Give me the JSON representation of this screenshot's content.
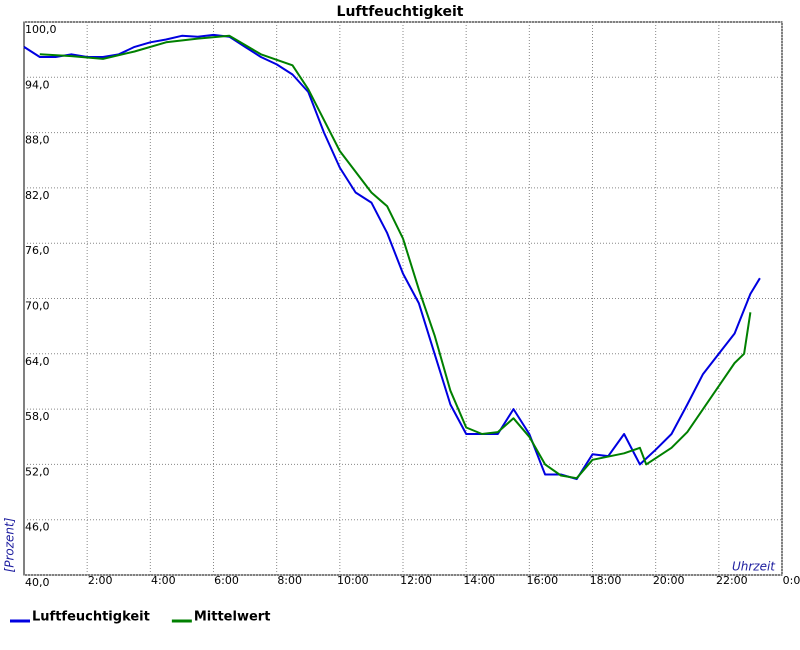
{
  "chart_data": {
    "type": "line",
    "title": "Luftfeuchtigkeit",
    "x_label": "Uhrzeit",
    "y_label": "[Prozent]",
    "xlim": [
      0,
      24
    ],
    "ylim": [
      40,
      100
    ],
    "xticks": [
      {
        "value": 2,
        "label": "2:00"
      },
      {
        "value": 4,
        "label": "4:00"
      },
      {
        "value": 6,
        "label": "6:00"
      },
      {
        "value": 8,
        "label": "8:00"
      },
      {
        "value": 10,
        "label": "10:00"
      },
      {
        "value": 12,
        "label": "12:00"
      },
      {
        "value": 14,
        "label": "14:00"
      },
      {
        "value": 16,
        "label": "16:00"
      },
      {
        "value": 18,
        "label": "18:00"
      },
      {
        "value": 20,
        "label": "20:00"
      },
      {
        "value": 22,
        "label": "22:00"
      },
      {
        "value": 24,
        "label": "0:00"
      }
    ],
    "yticks": [
      {
        "value": 40,
        "label": "40,0"
      },
      {
        "value": 46,
        "label": "46,0"
      },
      {
        "value": 52,
        "label": "52,0"
      },
      {
        "value": 58,
        "label": "58,0"
      },
      {
        "value": 64,
        "label": "64,0"
      },
      {
        "value": 70,
        "label": "70,0"
      },
      {
        "value": 76,
        "label": "76,0"
      },
      {
        "value": 82,
        "label": "82,0"
      },
      {
        "value": 88,
        "label": "88,0"
      },
      {
        "value": 94,
        "label": "94,0"
      },
      {
        "value": 100,
        "label": "100,0"
      }
    ],
    "grid": true,
    "legend": "bottom",
    "series": [
      {
        "name": "Luftfeuchtigkeit",
        "color": "#0000e0",
        "x": [
          0,
          0.5,
          1,
          1.5,
          2,
          2.5,
          3,
          3.5,
          4,
          4.5,
          5,
          5.5,
          6,
          6.5,
          7,
          7.5,
          8,
          8.5,
          9,
          9.5,
          10,
          10.5,
          11,
          11.5,
          12,
          12.5,
          13,
          13.5,
          14,
          14.5,
          15,
          15.5,
          16,
          16.5,
          17,
          17.5,
          18,
          18.5,
          19,
          19.5,
          20,
          20.5,
          21,
          21.5,
          22,
          22.5,
          23,
          23.3
        ],
        "values": [
          97.3,
          96.2,
          96.2,
          96.5,
          96.2,
          96.2,
          96.5,
          97.3,
          97.8,
          98.1,
          98.5,
          98.4,
          98.6,
          98.4,
          97.3,
          96.2,
          95.4,
          94.3,
          92.4,
          88.0,
          84.2,
          81.5,
          80.4,
          77.1,
          72.7,
          69.5,
          64.0,
          58.5,
          55.3,
          55.3,
          55.3,
          58.0,
          55.3,
          50.9,
          50.9,
          50.4,
          53.1,
          52.9,
          55.3,
          52.0,
          53.6,
          55.3,
          58.5,
          61.8,
          64.0,
          66.2,
          70.5,
          72.2
        ]
      },
      {
        "name": "Mittelwert",
        "color": "#008000",
        "x": [
          0.5,
          1.5,
          2.5,
          3.5,
          4.5,
          5.5,
          6.5,
          7.5,
          8.5,
          9,
          10,
          11,
          11.5,
          12,
          12.5,
          13,
          13.5,
          14,
          14.5,
          15,
          15.5,
          16,
          16.5,
          17,
          17.5,
          18,
          19,
          19.5,
          19.7,
          20.5,
          21,
          22,
          22.5,
          22.8,
          23
        ],
        "values": [
          96.5,
          96.3,
          96.0,
          96.8,
          97.8,
          98.2,
          98.5,
          96.5,
          95.3,
          92.7,
          86.0,
          81.5,
          80.0,
          76.5,
          71.0,
          66.0,
          60.0,
          56.0,
          55.3,
          55.5,
          57.0,
          55.0,
          52.0,
          50.8,
          50.5,
          52.5,
          53.2,
          53.8,
          52.0,
          53.8,
          55.5,
          60.5,
          63.0,
          64.0,
          68.5
        ]
      }
    ]
  }
}
